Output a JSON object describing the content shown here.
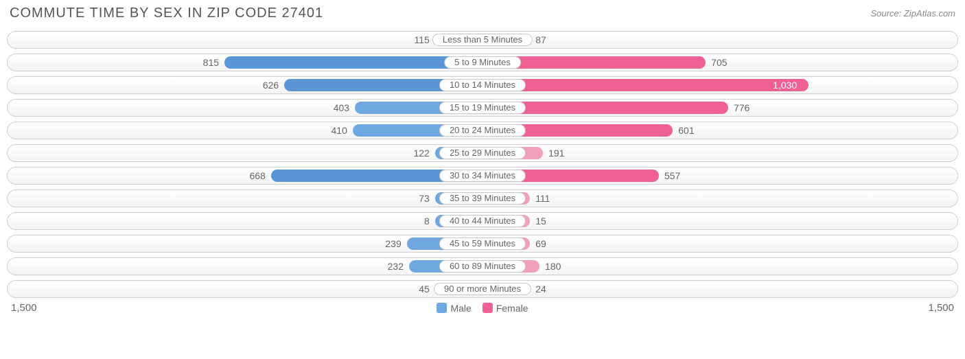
{
  "title": "COMMUTE TIME BY SEX IN ZIP CODE 27401",
  "source": "Source: ZipAtlas.com",
  "axis_max": 1500,
  "axis_left_label": "1,500",
  "axis_right_label": "1,500",
  "colors": {
    "male_base": "#6fa8e0",
    "male_highlight": "#5a95d6",
    "female_base": "#f39ebd",
    "female_highlight": "#ef6195",
    "text": "#666666",
    "track_border": "#cfcfcf",
    "background": "#ffffff"
  },
  "legend": [
    {
      "label": "Male",
      "color": "#6fa8e0"
    },
    {
      "label": "Female",
      "color": "#ef6195"
    }
  ],
  "rows": [
    {
      "category": "Less than 5 Minutes",
      "male": 115,
      "male_label": "115",
      "female": 87,
      "female_label": "87",
      "male_highlight": false,
      "female_highlight": false,
      "female_inside": false
    },
    {
      "category": "5 to 9 Minutes",
      "male": 815,
      "male_label": "815",
      "female": 705,
      "female_label": "705",
      "male_highlight": true,
      "female_highlight": true,
      "female_inside": false
    },
    {
      "category": "10 to 14 Minutes",
      "male": 626,
      "male_label": "626",
      "female": 1030,
      "female_label": "1,030",
      "male_highlight": true,
      "female_highlight": true,
      "female_inside": true
    },
    {
      "category": "15 to 19 Minutes",
      "male": 403,
      "male_label": "403",
      "female": 776,
      "female_label": "776",
      "male_highlight": false,
      "female_highlight": true,
      "female_inside": false
    },
    {
      "category": "20 to 24 Minutes",
      "male": 410,
      "male_label": "410",
      "female": 601,
      "female_label": "601",
      "male_highlight": false,
      "female_highlight": true,
      "female_inside": false
    },
    {
      "category": "25 to 29 Minutes",
      "male": 122,
      "male_label": "122",
      "female": 191,
      "female_label": "191",
      "male_highlight": false,
      "female_highlight": false,
      "female_inside": false
    },
    {
      "category": "30 to 34 Minutes",
      "male": 668,
      "male_label": "668",
      "female": 557,
      "female_label": "557",
      "male_highlight": true,
      "female_highlight": true,
      "female_inside": false
    },
    {
      "category": "35 to 39 Minutes",
      "male": 73,
      "male_label": "73",
      "female": 111,
      "female_label": "111",
      "male_highlight": false,
      "female_highlight": false,
      "female_inside": false
    },
    {
      "category": "40 to 44 Minutes",
      "male": 8,
      "male_label": "8",
      "female": 15,
      "female_label": "15",
      "male_highlight": false,
      "female_highlight": false,
      "female_inside": false
    },
    {
      "category": "45 to 59 Minutes",
      "male": 239,
      "male_label": "239",
      "female": 69,
      "female_label": "69",
      "male_highlight": false,
      "female_highlight": false,
      "female_inside": false
    },
    {
      "category": "60 to 89 Minutes",
      "male": 232,
      "male_label": "232",
      "female": 180,
      "female_label": "180",
      "male_highlight": false,
      "female_highlight": false,
      "female_inside": false
    },
    {
      "category": "90 or more Minutes",
      "male": 45,
      "male_label": "45",
      "female": 24,
      "female_label": "24",
      "male_highlight": false,
      "female_highlight": false,
      "female_inside": false
    }
  ]
}
